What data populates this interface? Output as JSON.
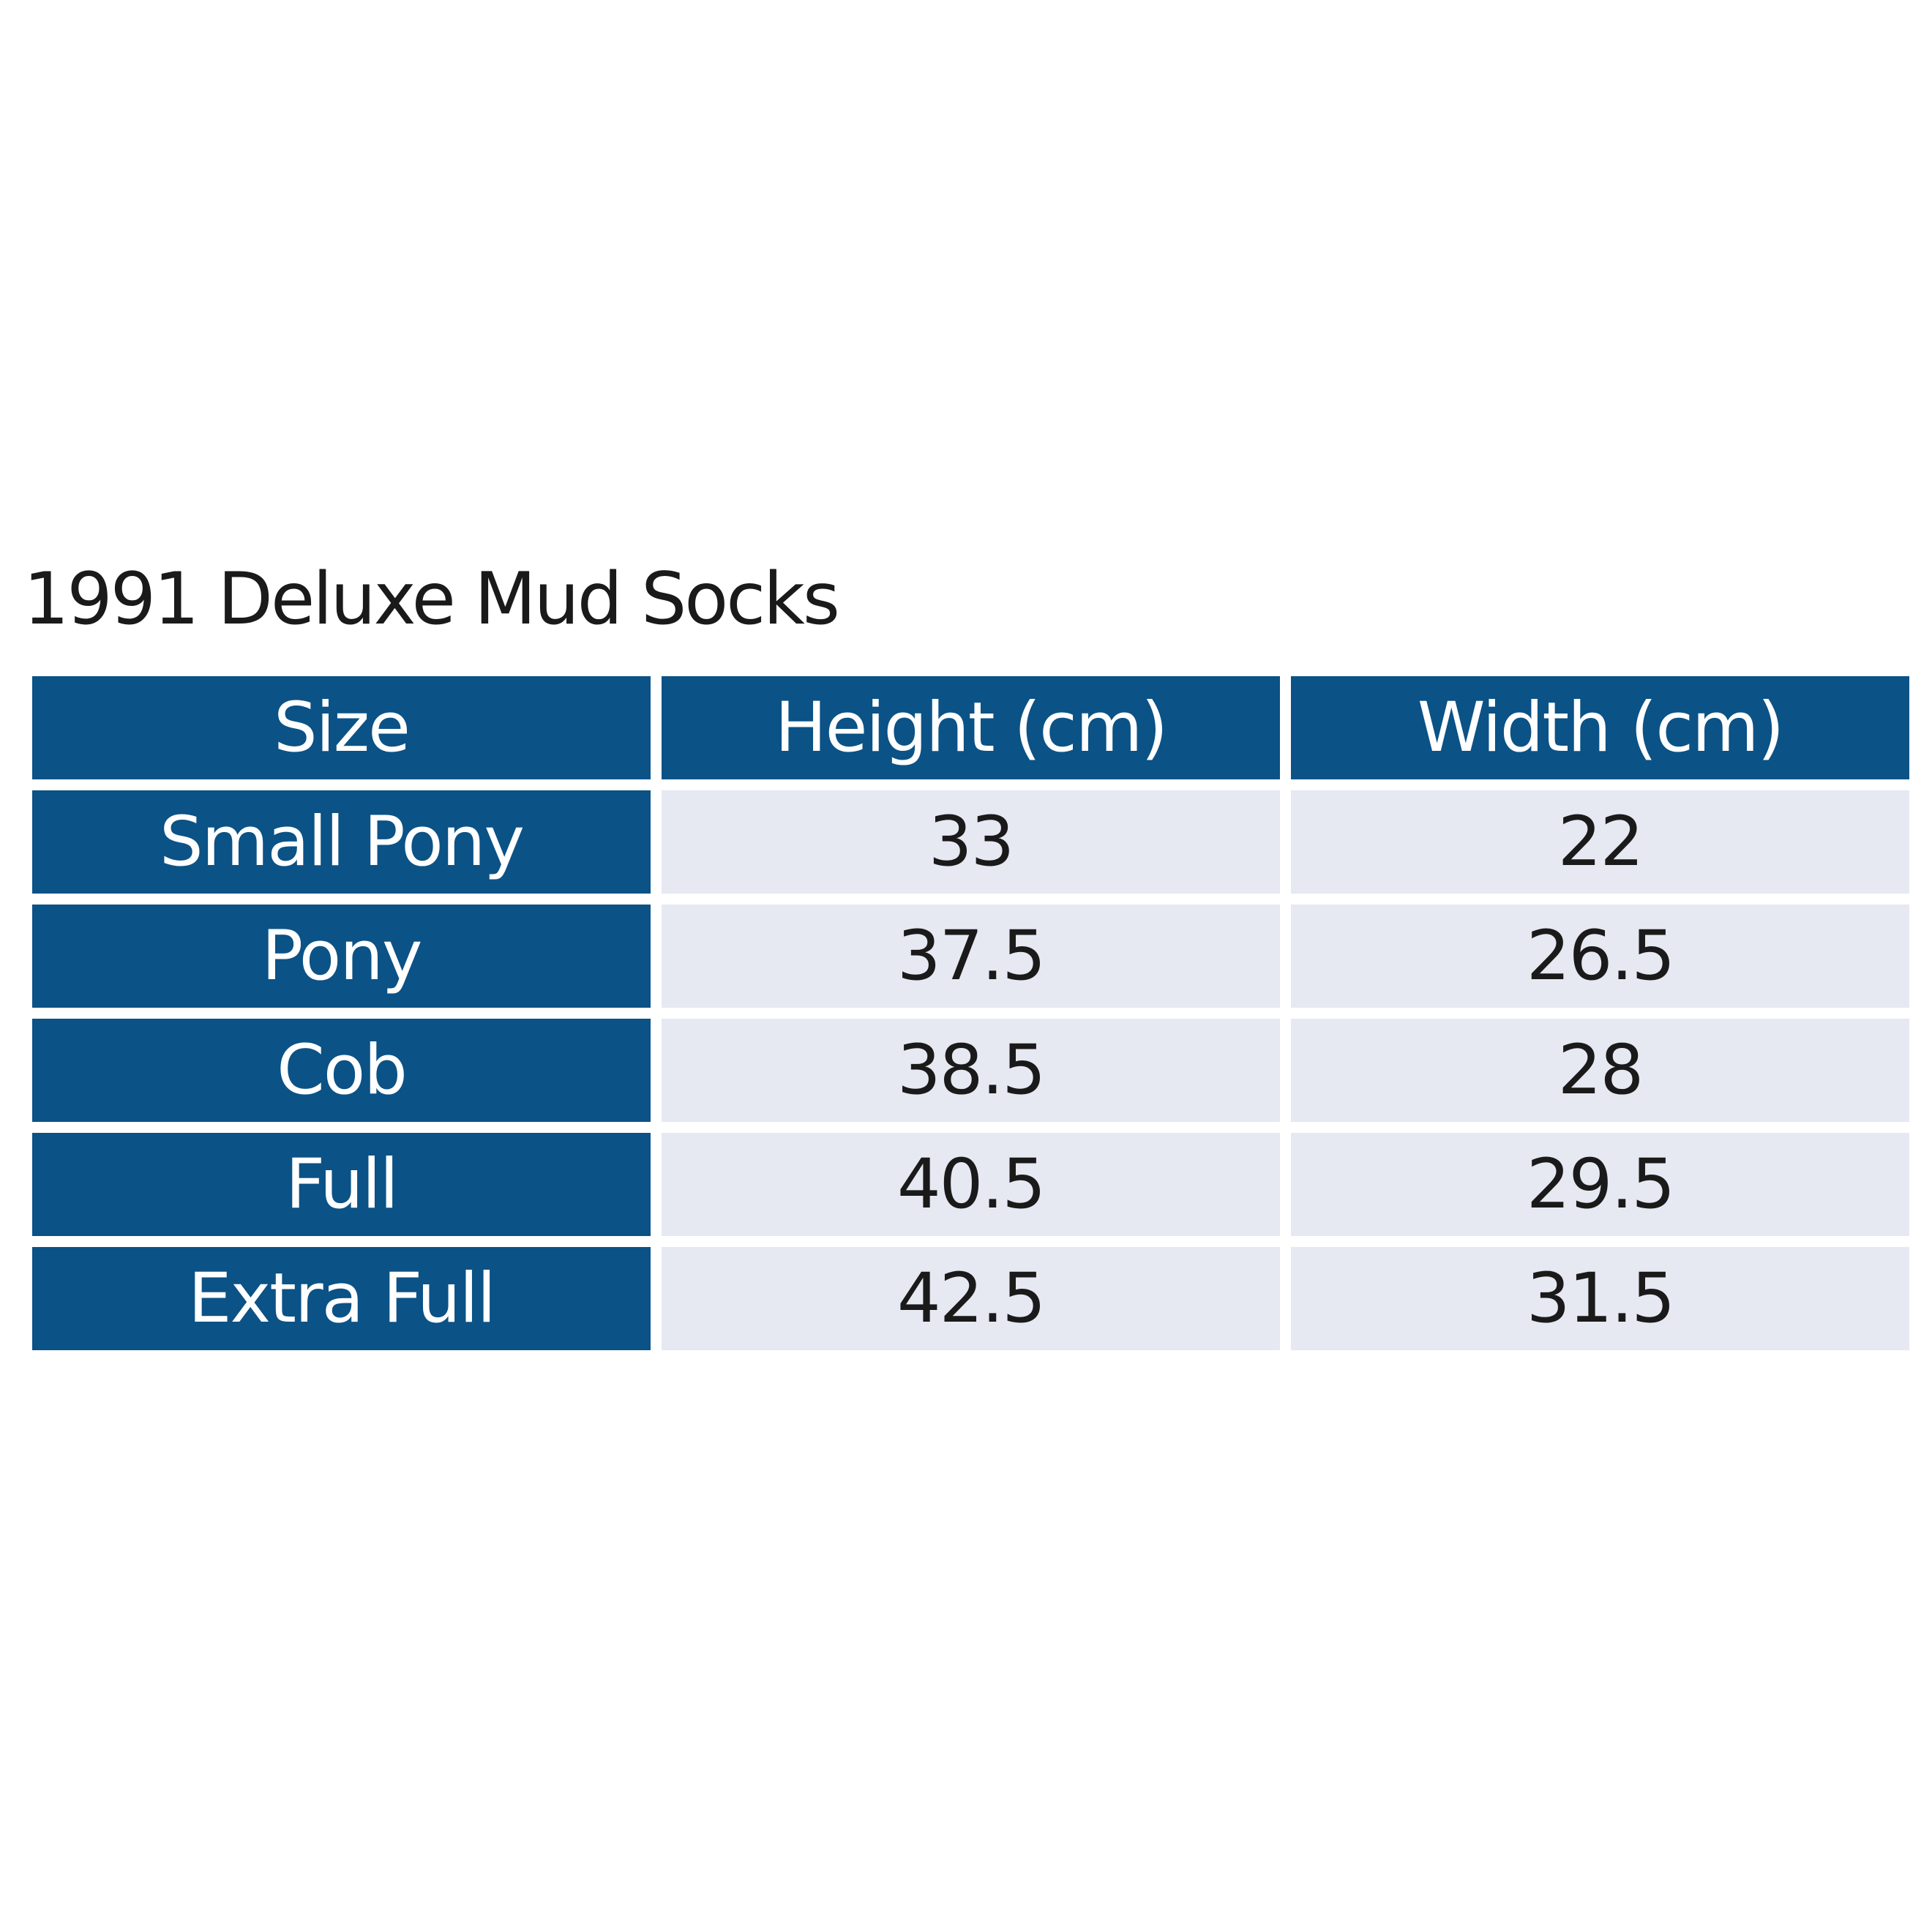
{
  "title": "1991 Deluxe Mud Socks",
  "colors": {
    "header_bg": "#0b5286",
    "cell_bg": "#e6e8f2"
  },
  "table": {
    "headers": [
      "Size",
      "Height (cm)",
      "Width (cm)"
    ],
    "rows": [
      [
        "Small Pony",
        "33",
        "22"
      ],
      [
        "Pony",
        "37.5",
        "26.5"
      ],
      [
        "Cob",
        "38.5",
        "28"
      ],
      [
        "Full",
        "40.5",
        "29.5"
      ],
      [
        "Extra Full",
        "42.5",
        "31.5"
      ]
    ]
  }
}
